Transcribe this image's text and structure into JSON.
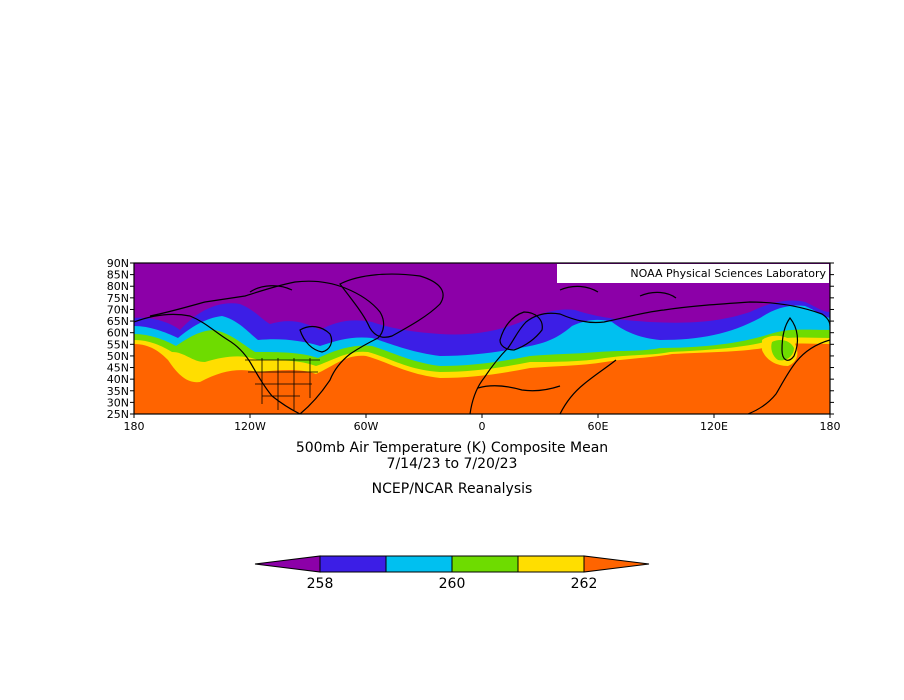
{
  "map": {
    "credit": "NOAA Physical Sciences Laboratory",
    "lat_ticks": [
      "90N",
      "85N",
      "80N",
      "75N",
      "70N",
      "65N",
      "60N",
      "55N",
      "50N",
      "45N",
      "40N",
      "35N",
      "30N",
      "25N"
    ],
    "lon_ticks": [
      "180",
      "120W",
      "60W",
      "0",
      "60E",
      "120E",
      "180"
    ],
    "extent": {
      "lon": [
        -180,
        180
      ],
      "lat": [
        25,
        90
      ]
    }
  },
  "title": {
    "line1": "500mb Air Temperature (K) Composite Mean",
    "line2": "7/14/23   to 7/20/23",
    "source": "NCEP/NCAR Reanalysis"
  },
  "colorbar": {
    "labels": [
      "258",
      "260",
      "262"
    ],
    "colors": [
      "#8c00a8",
      "#3c1ee6",
      "#00c0f0",
      "#6edc00",
      "#ffde00",
      "#ff6400"
    ]
  },
  "colors": {
    "purple": "#8c00a8",
    "blue": "#3c1ee6",
    "cyan": "#00c0f0",
    "green": "#6edc00",
    "yellow": "#ffde00",
    "orange": "#ff6400"
  }
}
